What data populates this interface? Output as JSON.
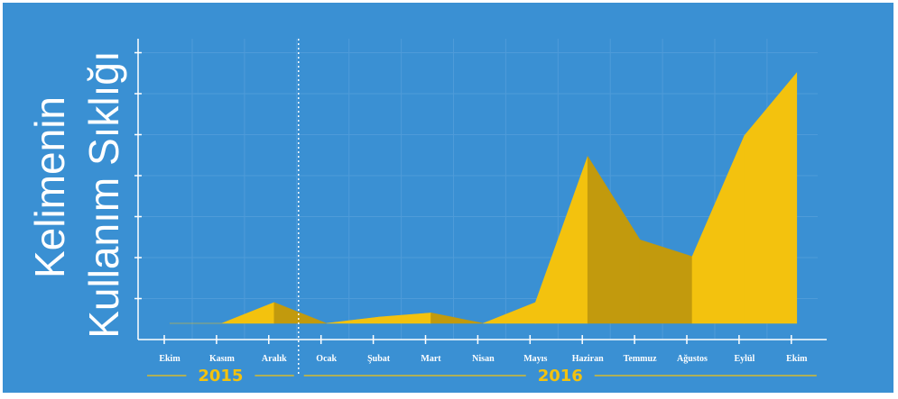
{
  "chart_data": {
    "type": "area",
    "title": "",
    "ylabel_lines": [
      "Kelimenin",
      "Kullanım Sıklığı"
    ],
    "xlabel": "",
    "categories": [
      "Ekim",
      "Kasım",
      "Aralık",
      "Ocak",
      "Şubat",
      "Mart",
      "Nisan",
      "Mayıs",
      "Haziran",
      "Temmuz",
      "Ağustos",
      "Eylül",
      "Ekim"
    ],
    "x": [
      0,
      1,
      2,
      3,
      4,
      5,
      6,
      7,
      8,
      9,
      10,
      11,
      12
    ],
    "series": [
      {
        "values": [
          0,
          0,
          1,
          0,
          0.3,
          0.5,
          0,
          1,
          8,
          4,
          3.2,
          9,
          12
        ]
      }
    ],
    "ylim": [
      0,
      13.5
    ],
    "y_tick_count": 7,
    "grid": true,
    "year_groups": [
      {
        "label": "2015",
        "start": 0,
        "end": 2
      },
      {
        "label": "2016",
        "start": 3,
        "end": 12
      }
    ],
    "colors": {
      "background": "#3a90d3",
      "area_light": "#f3c20e",
      "area_dark": "#c29a0d",
      "grid": "#4e9bd9",
      "axis": "#ffffff",
      "year_label": "#f3c20e"
    }
  }
}
